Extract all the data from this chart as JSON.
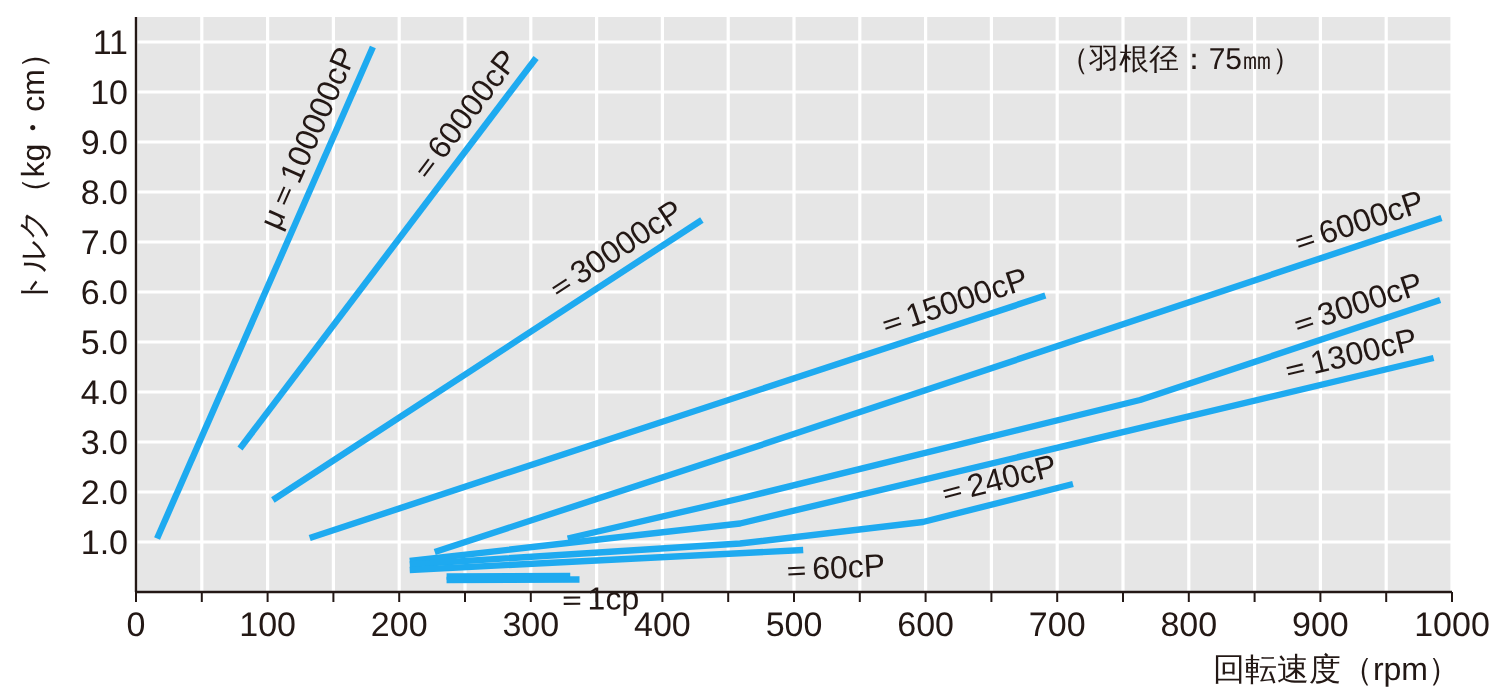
{
  "chart_data": {
    "type": "line",
    "xlabel": "回転速度（rpm）",
    "ylabel": "トルク（kg・cm）",
    "annotations": [
      "（羽根径：75㎜）"
    ],
    "xlim": [
      0,
      1000
    ],
    "ylim": [
      0,
      11.5
    ],
    "xticks": [
      0,
      {
        "value": 50,
        "label": null
      },
      100,
      {
        "value": 150,
        "label": null
      },
      200,
      {
        "value": 250,
        "label": null
      },
      300,
      {
        "value": 350,
        "label": null
      },
      400,
      {
        "value": 450,
        "label": null
      },
      500,
      {
        "value": 550,
        "label": null
      },
      600,
      {
        "value": 650,
        "label": null
      },
      700,
      {
        "value": 750,
        "label": null
      },
      800,
      {
        "value": 850,
        "label": null
      },
      900,
      {
        "value": 950,
        "label": null
      },
      1000
    ],
    "yticks": [
      {
        "value": 1,
        "label": "1.0"
      },
      {
        "value": 2,
        "label": "2.0"
      },
      {
        "value": 3,
        "label": "3.0"
      },
      {
        "value": 4,
        "label": "4.0"
      },
      {
        "value": 5,
        "label": "5.0"
      },
      {
        "value": 6,
        "label": "6.0"
      },
      {
        "value": 7,
        "label": "7.0"
      },
      {
        "value": 8,
        "label": "8.0"
      },
      {
        "value": 9,
        "label": "9.0"
      },
      10,
      11
    ],
    "grid": true,
    "line_style": "solid",
    "series": [
      {
        "name": "μ＝100000cP",
        "color": "#1eaaf0",
        "x": [
          16,
          180
        ],
        "values": [
          1.07,
          10.9
        ]
      },
      {
        "name": "＝60000cP",
        "color": "#1eaaf0",
        "x": [
          79,
          304
        ],
        "values": [
          2.87,
          10.68
        ]
      },
      {
        "name": "＝30000cP",
        "color": "#1eaaf0",
        "x": [
          104,
          430
        ],
        "values": [
          1.84,
          7.44
        ]
      },
      {
        "name": "＝15000cP",
        "color": "#1eaaf0",
        "x": [
          132,
          691
        ],
        "values": [
          1.08,
          5.93
        ]
      },
      {
        "name": "＝6000cP",
        "color": "#1eaaf0",
        "x": [
          227,
          459,
          992
        ],
        "values": [
          0.8,
          2.8,
          7.48
        ]
      },
      {
        "name": "＝3000cP",
        "color": "#1eaaf0",
        "x": [
          328,
          459,
          763,
          991
        ],
        "values": [
          1.07,
          1.87,
          3.84,
          5.84
        ]
      },
      {
        "name": "＝1300cP",
        "color": "#1eaaf0",
        "x": [
          208,
          459,
          986
        ],
        "values": [
          0.62,
          1.37,
          4.68
        ]
      },
      {
        "name": "＝240cP",
        "color": "#1eaaf0",
        "x": [
          208,
          459,
          598,
          712
        ],
        "values": [
          0.55,
          0.97,
          1.4,
          2.16
        ]
      },
      {
        "name": "＝60cP",
        "color": "#1eaaf0",
        "x": [
          208,
          507
        ],
        "values": [
          0.44,
          0.84
        ]
      },
      {
        "color": "#1eaaf0",
        "x": [
          236,
          330
        ],
        "values": [
          0.31,
          0.32
        ]
      },
      {
        "name": "＝1cp",
        "color": "#1eaaf0",
        "x": [
          236,
          337
        ],
        "values": [
          0.24,
          0.25
        ]
      }
    ]
  }
}
